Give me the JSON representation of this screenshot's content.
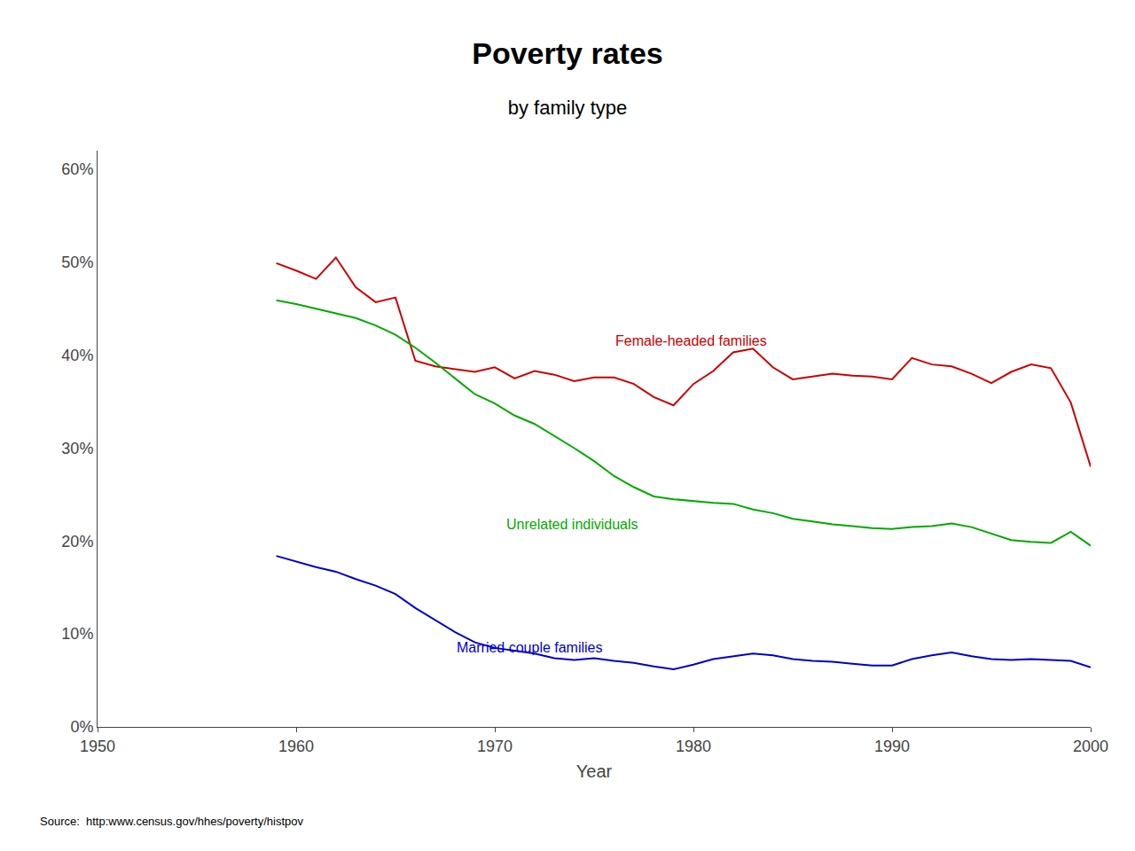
{
  "chart_data": {
    "type": "line",
    "title": "Poverty rates",
    "subtitle": "by family type",
    "x_label": "Year",
    "source": "Source:  http:www.census.gov/hhes/poverty/histpov",
    "xlim": [
      1950,
      2000
    ],
    "ylim": [
      0,
      0.62
    ],
    "xticks": [
      1950,
      1960,
      1970,
      1980,
      1990,
      2000
    ],
    "yticks": [
      {
        "value": 0.0,
        "label": "0%"
      },
      {
        "value": 0.1,
        "label": "10%"
      },
      {
        "value": 0.2,
        "label": "20%"
      },
      {
        "value": 0.3,
        "label": "30%"
      },
      {
        "value": 0.4,
        "label": "40%"
      },
      {
        "value": 0.5,
        "label": "50%"
      },
      {
        "value": 0.6,
        "label": "60%"
      }
    ],
    "grid": false,
    "x": [
      1959,
      1960,
      1961,
      1962,
      1963,
      1964,
      1965,
      1966,
      1967,
      1968,
      1969,
      1970,
      1971,
      1972,
      1973,
      1974,
      1975,
      1976,
      1977,
      1978,
      1979,
      1980,
      1981,
      1982,
      1983,
      1984,
      1985,
      1986,
      1987,
      1988,
      1989,
      1990,
      1991,
      1992,
      1993,
      1994,
      1995,
      1996,
      1997,
      1998,
      1999,
      2000
    ],
    "series": [
      {
        "color": "#cc0000",
        "values": [
          0.499,
          0.491,
          0.482,
          0.505,
          0.473,
          0.457,
          0.462,
          0.394,
          0.388,
          0.385,
          0.382,
          0.387,
          0.375,
          0.383,
          0.379,
          0.372,
          0.376,
          0.376,
          0.369,
          0.355,
          0.346,
          0.369,
          0.383,
          0.403,
          0.407,
          0.387,
          0.374,
          0.377,
          0.38,
          0.378,
          0.377,
          0.374,
          0.397,
          0.39,
          0.388,
          0.38,
          0.37,
          0.382,
          0.39,
          0.386,
          0.349,
          0.28
        ]
      },
      {
        "color": "#00aa00",
        "values": [
          0.459,
          0.455,
          0.45,
          0.445,
          0.44,
          0.432,
          0.422,
          0.408,
          0.392,
          0.375,
          0.358,
          0.348,
          0.335,
          0.326,
          0.313,
          0.3,
          0.286,
          0.27,
          0.258,
          0.248,
          0.245,
          0.243,
          0.241,
          0.24,
          0.234,
          0.23,
          0.224,
          0.221,
          0.218,
          0.216,
          0.214,
          0.213,
          0.215,
          0.216,
          0.219,
          0.215,
          0.208,
          0.201,
          0.199,
          0.198,
          0.21,
          0.195
        ]
      },
      {
        "color": "#0000cc",
        "values": [
          0.184,
          0.178,
          0.172,
          0.167,
          0.159,
          0.152,
          0.143,
          0.128,
          0.115,
          0.102,
          0.091,
          0.085,
          0.082,
          0.079,
          0.074,
          0.072,
          0.074,
          0.071,
          0.069,
          0.065,
          0.062,
          0.067,
          0.073,
          0.076,
          0.079,
          0.077,
          0.073,
          0.071,
          0.07,
          0.068,
          0.066,
          0.066,
          0.073,
          0.077,
          0.08,
          0.076,
          0.073,
          0.072,
          0.073,
          0.072,
          0.071,
          0.064
        ]
      }
    ],
    "annotations": [
      {
        "text": "Female-headed families",
        "x": 1976,
        "y": 0.415,
        "color": "#cc0000"
      },
      {
        "text": "Unrelated individuals",
        "x": 1970.5,
        "y": 0.218,
        "color": "#00aa00"
      },
      {
        "text": "Married couple families",
        "x": 1968,
        "y": 0.085,
        "color": "#0000cc"
      }
    ]
  }
}
